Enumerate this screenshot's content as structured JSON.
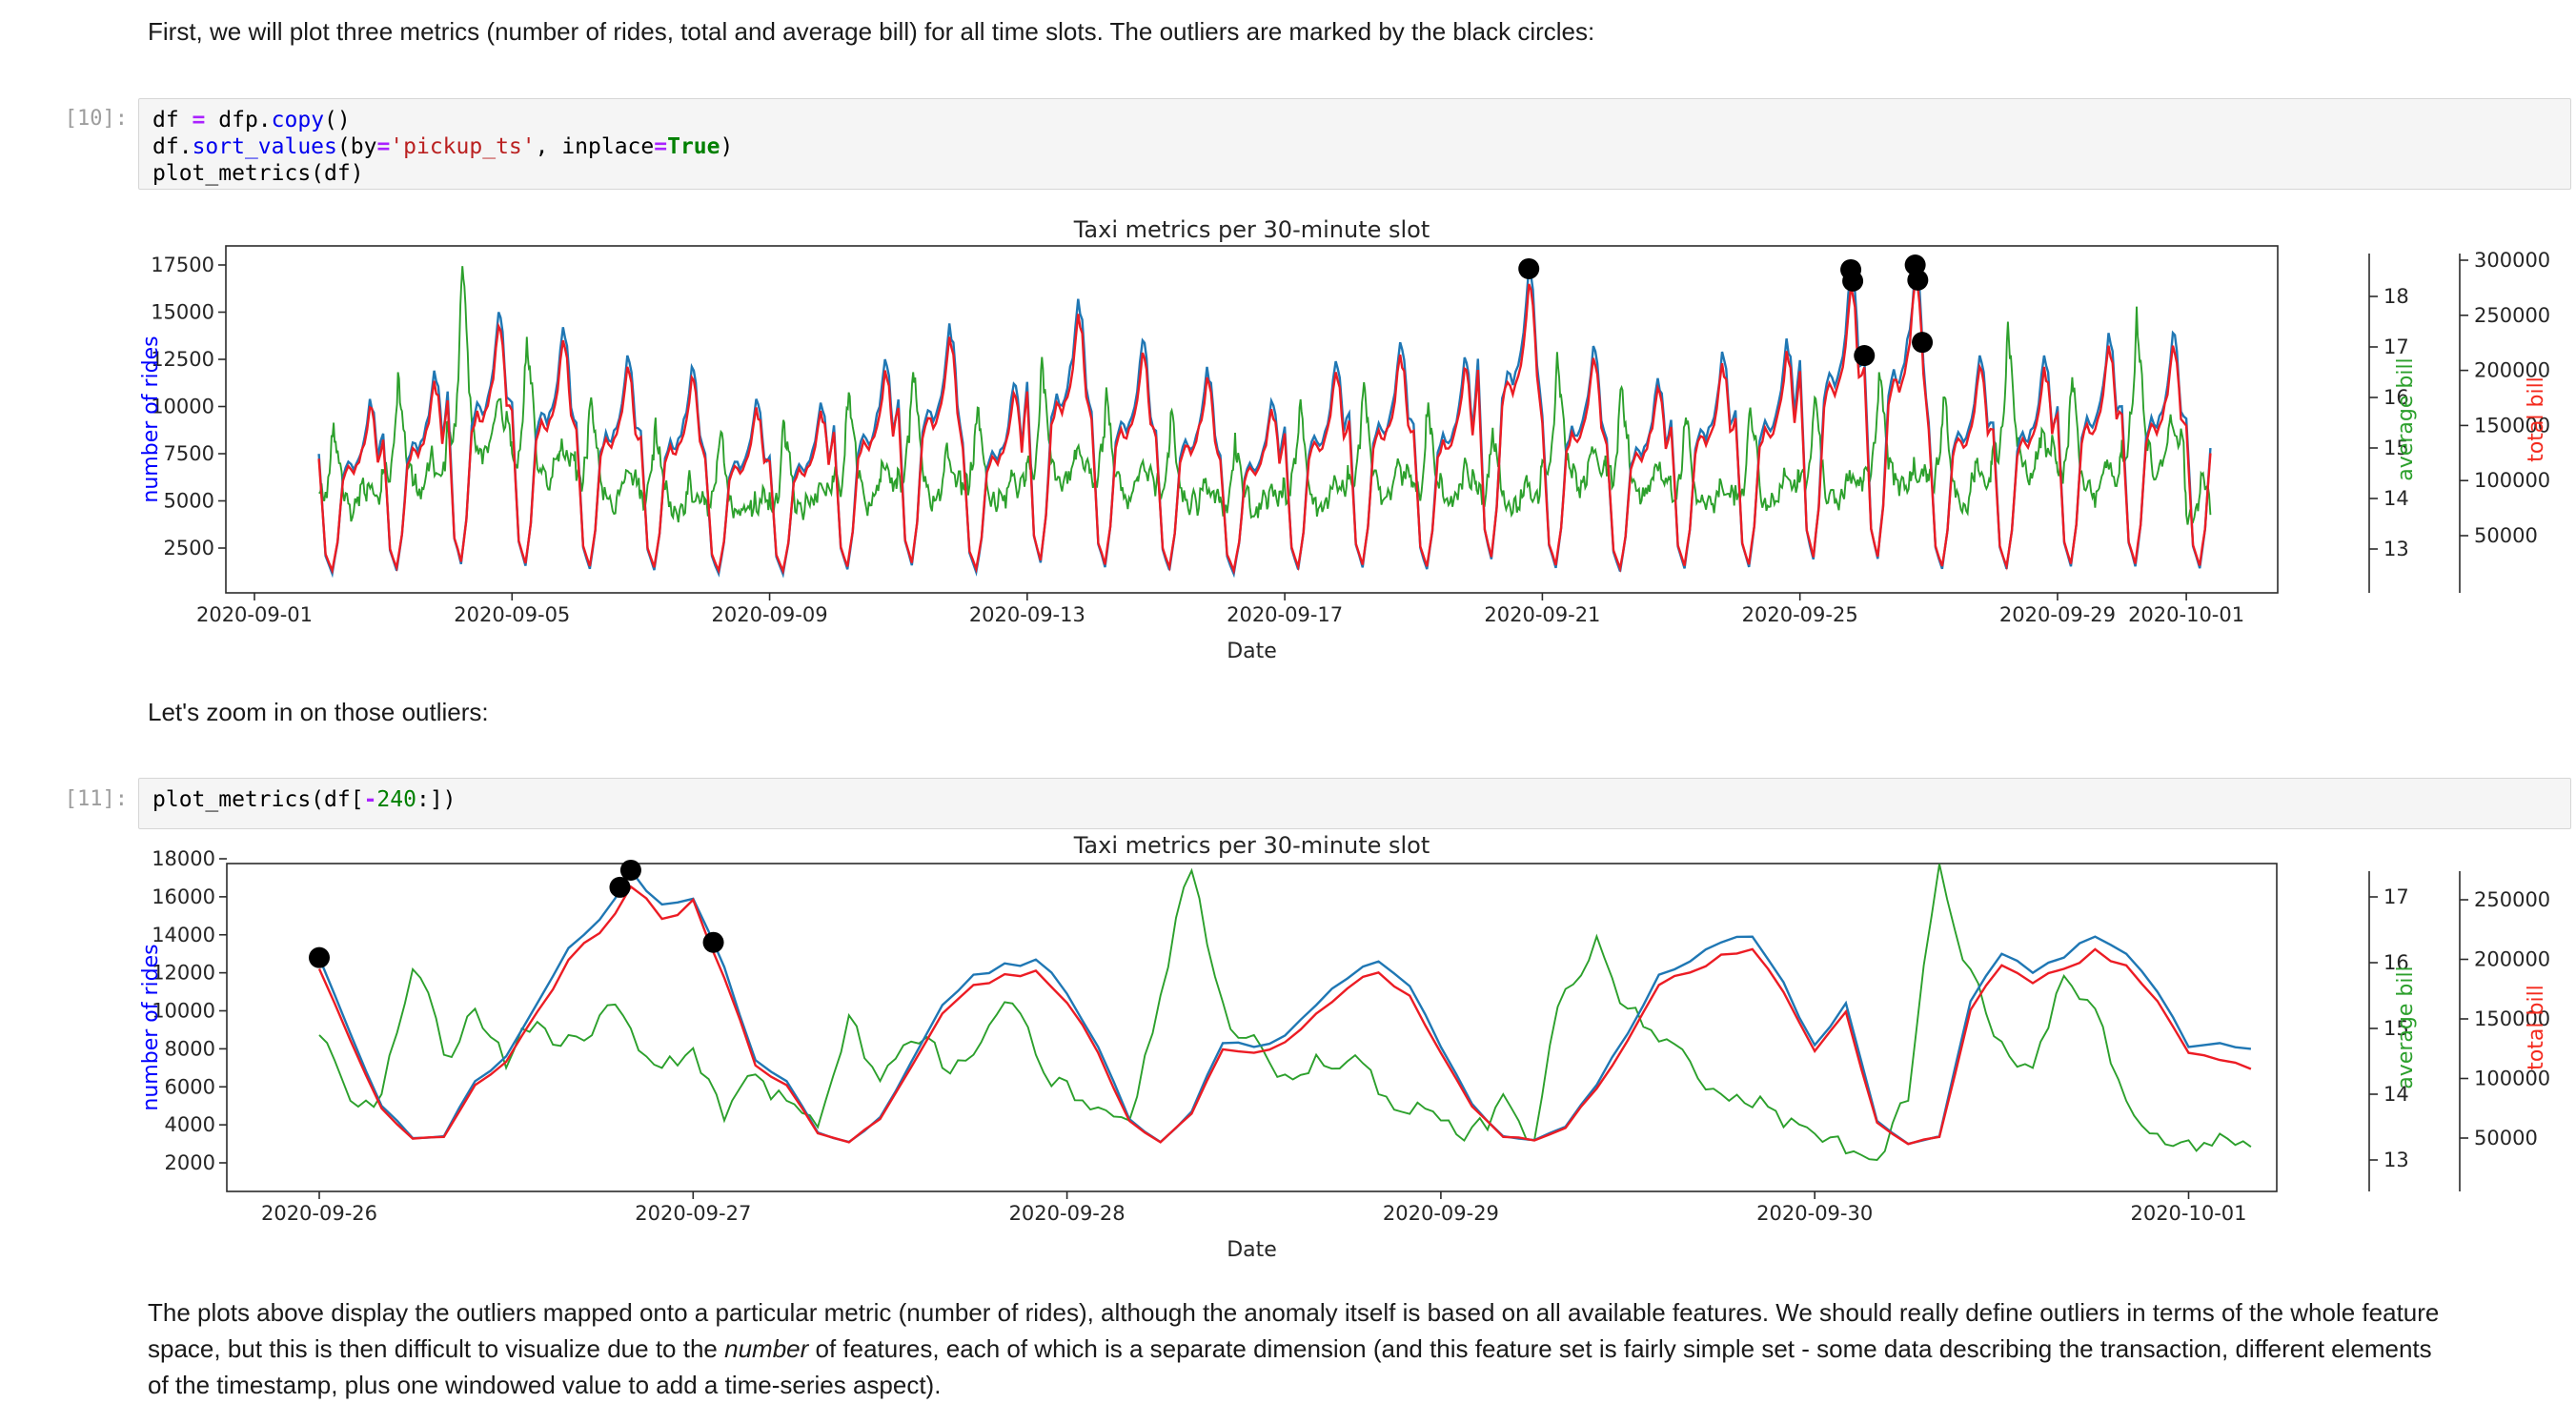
{
  "markdown": {
    "intro": "First, we will plot three metrics (number of rides, total and average bill) for all time slots. The outliers are marked by the black circles:",
    "zoom_note": "Let's zoom in on those outliers:"
  },
  "cells": [
    {
      "prompt": "[10]:",
      "lines": [
        [
          {
            "t": "df ",
            "c": "p"
          },
          {
            "t": "=",
            "c": "o"
          },
          {
            "t": " dfp",
            "c": "p"
          },
          {
            "t": ".",
            "c": "p"
          },
          {
            "t": "copy",
            "c": "f"
          },
          {
            "t": "()",
            "c": "p"
          }
        ],
        [
          {
            "t": "df",
            "c": "p"
          },
          {
            "t": ".",
            "c": "p"
          },
          {
            "t": "sort_values",
            "c": "f"
          },
          {
            "t": "(by",
            "c": "p"
          },
          {
            "t": "=",
            "c": "o"
          },
          {
            "t": "'pickup_ts'",
            "c": "s"
          },
          {
            "t": ", inplace",
            "c": "p"
          },
          {
            "t": "=",
            "c": "o"
          },
          {
            "t": "True",
            "c": "k"
          },
          {
            "t": ")",
            "c": "p"
          }
        ],
        [
          {
            "t": "plot_metrics(df)",
            "c": "p"
          }
        ]
      ]
    },
    {
      "prompt": "[11]:",
      "lines": [
        [
          {
            "t": "plot_metrics(df[",
            "c": "p"
          },
          {
            "t": "-",
            "c": "o"
          },
          {
            "t": "240",
            "c": "n"
          },
          {
            "t": ":])",
            "c": "p"
          }
        ]
      ]
    }
  ],
  "paragraph": {
    "part1": "The plots above display the outliers mapped onto a particular metric (number of rides), although the anomaly itself is based on all available features. We should really define outliers in terms of the whole feature space, but this is then difficult to visualize due to the ",
    "italic_word": "number",
    "part2": " of features, each of which is a separate dimension (and this feature set is fairly simple set - some data describing the transaction, different elements of the timestamp, plus one windowed value to add a time-series aspect)."
  },
  "colors": {
    "rides_line": "#1f77b4",
    "total_line": "#ec1c24",
    "avg_line": "#2ca02c",
    "rides_label": "#0000ff",
    "avg_label": "#2ca02c",
    "total_label": "#f42a1e",
    "axis": "#2b2b2b",
    "outlier": "#000000"
  },
  "chart_data": [
    {
      "type": "line",
      "title": "Taxi metrics per 30-minute slot",
      "xlabel": "Date",
      "ylabel_left": "number of rides",
      "ylabel_avg": "average bill",
      "ylabel_total": "total bill",
      "grid": false,
      "x_tick_labels": [
        "2020-09-01",
        "2020-09-05",
        "2020-09-09",
        "2020-09-13",
        "2020-09-17",
        "2020-09-21",
        "2020-09-25",
        "2020-09-29",
        "2020-10-01"
      ],
      "x_tick_days": [
        0,
        4,
        8,
        12,
        16,
        20,
        24,
        28,
        30
      ],
      "y_left_ticks": [
        2500,
        5000,
        7500,
        10000,
        12500,
        15000,
        17500
      ],
      "ylim_left": [
        130,
        18600
      ],
      "avg_ticks": [
        13,
        14,
        15,
        16,
        17,
        18
      ],
      "total_ticks": [
        50000,
        100000,
        150000,
        200000,
        250000,
        300000
      ],
      "series": {
        "number_of_rides": {
          "color": "#1f77b4",
          "axis": "left",
          "start_date": "2020-09-02",
          "day_offset": 1,
          "anchor_hours": [
            0,
            2.5,
            5,
            7,
            9,
            11,
            13,
            15,
            17,
            19,
            20.5,
            22
          ],
          "shape": [
            0.72,
            0.2,
            0.11,
            0.27,
            0.6,
            0.68,
            0.64,
            0.7,
            0.8,
            1.0,
            0.93,
            0.7
          ],
          "daily_peaks": [
            10400,
            11900,
            15000,
            14200,
            12700,
            12100,
            10400,
            10200,
            12500,
            14400,
            11200,
            15700,
            13500,
            12100,
            10300,
            12400,
            13400,
            12600,
            17400,
            13200,
            11500,
            12900,
            13600,
            17300,
            17600,
            12700,
            12700,
            13900,
            13900,
            13000
          ],
          "last_day_max_hour": 10
        },
        "total_bill": {
          "color": "#ec1c24",
          "axis": "total",
          "bill_per_ride": 16.0
        },
        "average_bill": {
          "color": "#2ca02c",
          "axis": "avg",
          "base": 13.0,
          "anchor_hours": [
            0,
            2,
            4,
            5.5,
            7,
            9,
            11,
            13,
            15,
            17,
            18.5,
            21,
            23
          ],
          "shape": [
            0.45,
            0.38,
            0.6,
            1.0,
            0.78,
            0.45,
            0.36,
            0.3,
            0.34,
            0.44,
            0.52,
            0.42,
            0.44
          ],
          "daily_spikes": [
            15.5,
            16.5,
            18.6,
            17.2,
            16.0,
            15.6,
            15.2,
            15.5,
            16.1,
            16.5,
            15.8,
            16.8,
            16.2,
            15.7,
            15.3,
            15.8,
            16.3,
            15.9,
            15.4,
            16.9,
            16.2,
            15.6,
            15.8,
            16.0,
            16.5,
            16.0,
            17.5,
            16.4,
            17.8,
            14.5
          ]
        }
      },
      "outliers": [
        {
          "day": 19.79,
          "value": 17300
        },
        {
          "day": 24.79,
          "value": 17250
        },
        {
          "day": 24.82,
          "value": 16650
        },
        {
          "day": 25.0,
          "value": 12700
        },
        {
          "day": 25.79,
          "value": 17500
        },
        {
          "day": 25.83,
          "value": 16700
        },
        {
          "day": 25.9,
          "value": 13400
        }
      ]
    },
    {
      "type": "line",
      "title": "Taxi metrics per 30-minute slot",
      "xlabel": "Date",
      "ylabel_left": "number of rides",
      "ylabel_avg": "average bill",
      "ylabel_total": "total bill",
      "grid": false,
      "x_tick_labels": [
        "2020-09-26",
        "2020-09-27",
        "2020-09-28",
        "2020-09-29",
        "2020-09-30",
        "2020-10-01"
      ],
      "x_tick_days": [
        0,
        1,
        2,
        3,
        4,
        5
      ],
      "y_left_ticks": [
        2000,
        4000,
        6000,
        8000,
        10000,
        12000,
        14000,
        16000,
        18000
      ],
      "ylim_left": [
        500,
        18200
      ],
      "avg_ticks": [
        13,
        14,
        15,
        16,
        17
      ],
      "total_ticks": [
        50000,
        100000,
        150000,
        200000,
        250000
      ],
      "hour_step": 2,
      "series": {
        "number_of_rides": {
          "color": "#1f77b4",
          "axis": "left",
          "values": [
            12800,
            8800,
            5000,
            3300,
            3400,
            6300,
            7600,
            10400,
            13300,
            14800,
            17400,
            15600,
            15900,
            12300,
            7400,
            6300,
            3600,
            3100,
            4400,
            7300,
            10300,
            11900,
            12500,
            12700,
            10900,
            8100,
            4300,
            3100,
            4700,
            8300,
            8100,
            8700,
            10300,
            11700,
            12600,
            11300,
            8100,
            5100,
            3400,
            3200,
            3900,
            6100,
            8800,
            11900,
            12600,
            13600,
            13900,
            11500,
            8200,
            10400,
            4200,
            3000,
            3400,
            10500,
            13000,
            12000,
            12800,
            13900,
            13000,
            11000,
            8100,
            8300,
            8000
          ]
        },
        "total_bill": {
          "color": "#ec1c24",
          "axis": "total",
          "values": [
            192000,
            132000,
            75000,
            49500,
            51000,
            94500,
            114000,
            156000,
            199500,
            222000,
            261000,
            234000,
            250000,
            184500,
            111000,
            94500,
            54000,
            46500,
            66000,
            109500,
            154500,
            178500,
            187500,
            190500,
            163500,
            121500,
            64500,
            46500,
            70500,
            124500,
            121500,
            130500,
            154500,
            175500,
            189000,
            169500,
            121500,
            76500,
            51000,
            48000,
            58500,
            91500,
            132000,
            178500,
            189000,
            204000,
            208500,
            172500,
            123000,
            156000,
            63000,
            45000,
            51000,
            157500,
            195000,
            180000,
            192000,
            208500,
            195000,
            165000,
            121500,
            115500,
            108000
          ]
        },
        "average_bill": {
          "color": "#2ca02c",
          "axis": "avg",
          "values": [
            14.9,
            13.9,
            14.0,
            15.9,
            14.6,
            15.3,
            14.4,
            15.1,
            14.9,
            15.2,
            15.0,
            14.4,
            14.7,
            13.6,
            14.3,
            13.9,
            13.5,
            15.2,
            14.2,
            14.8,
            14.4,
            14.6,
            15.4,
            14.6,
            14.2,
            13.8,
            13.6,
            15.5,
            17.4,
            15.4,
            14.9,
            14.3,
            14.6,
            14.5,
            14.0,
            13.7,
            13.6,
            13.5,
            14.0,
            13.3,
            15.6,
            16.4,
            15.3,
            14.8,
            14.5,
            14.0,
            13.8,
            13.5,
            13.4,
            13.1,
            13.0,
            13.9,
            17.5,
            15.9,
            14.8,
            14.4,
            15.8,
            15.3,
            13.9,
            13.4,
            13.3,
            13.4,
            13.2
          ]
        }
      },
      "outliers": [
        {
          "hour": 0,
          "value": 12800
        },
        {
          "hour": 19.3,
          "value": 16500
        },
        {
          "hour": 20,
          "value": 17400
        },
        {
          "hour": 25.3,
          "value": 13600
        }
      ]
    }
  ]
}
